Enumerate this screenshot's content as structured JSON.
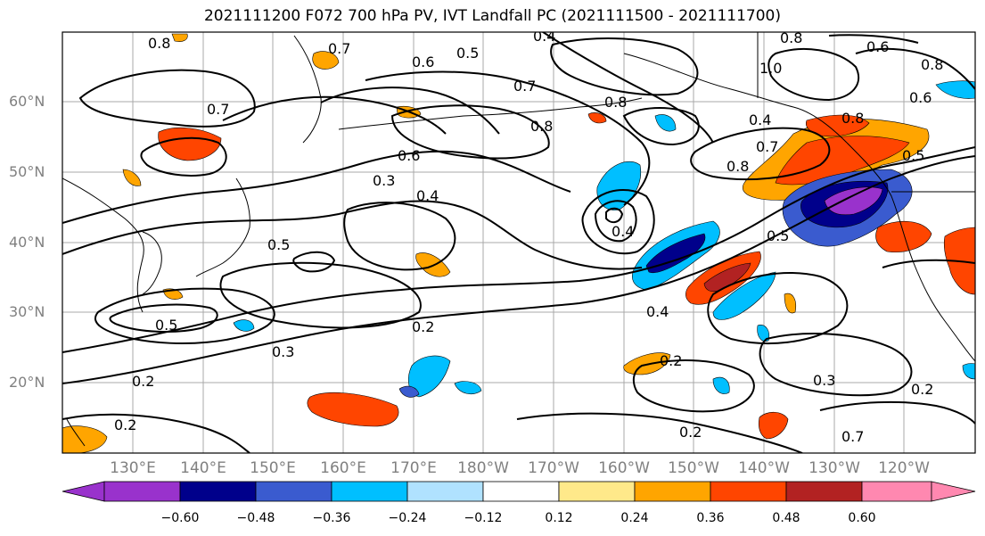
{
  "title": "2021111200 F072 700 hPa PV, IVT Landfall PC (2021111500 - 2021111700)",
  "lat_labels": [
    "60°N",
    "50°N",
    "40°N",
    "30°N",
    "20°N"
  ],
  "lon_labels": [
    "130°E",
    "140°E",
    "150°E",
    "160°E",
    "170°E",
    "180°W",
    "170°W",
    "160°W",
    "150°W",
    "140°W",
    "130°W",
    "120°W"
  ],
  "contour_labels": [
    {
      "text": "0.8"
    },
    {
      "text": "0.7"
    },
    {
      "text": "0.4"
    },
    {
      "text": "0.6"
    },
    {
      "text": "0.5"
    },
    {
      "text": "0.7"
    },
    {
      "text": "0.8"
    },
    {
      "text": "0.8"
    },
    {
      "text": "0.6"
    },
    {
      "text": "0.8"
    },
    {
      "text": "1.0"
    },
    {
      "text": "0.8"
    },
    {
      "text": "0.6"
    },
    {
      "text": "0.7"
    },
    {
      "text": "0.3"
    },
    {
      "text": "0.6"
    },
    {
      "text": "0.4"
    },
    {
      "text": "0.7"
    },
    {
      "text": "0.8"
    },
    {
      "text": "0.4"
    },
    {
      "text": "0.5"
    },
    {
      "text": "0.5"
    },
    {
      "text": "0.5"
    },
    {
      "text": "0.5"
    },
    {
      "text": "0.4"
    },
    {
      "text": "0.4"
    },
    {
      "text": "0.3"
    },
    {
      "text": "0.2"
    },
    {
      "text": "0.2"
    },
    {
      "text": "0.2"
    },
    {
      "text": "0.3"
    },
    {
      "text": "0.2"
    },
    {
      "text": "0.2"
    },
    {
      "text": "0.2"
    },
    {
      "text": "0.7"
    },
    {
      "text": "0.8"
    }
  ],
  "colorbar": {
    "ticks": [
      "−0.60",
      "−0.48",
      "−0.36",
      "−0.24",
      "−0.12",
      "0.12",
      "0.24",
      "0.36",
      "0.48",
      "0.60"
    ],
    "colors": [
      "#9932cc",
      "#00008b",
      "#3a5bcf",
      "#00bfff",
      "#b0e2ff",
      "#ffffff",
      "#ffe98a",
      "#ffa500",
      "#ff4500",
      "#b22222",
      "#ff88b0"
    ]
  },
  "fill_colors": {
    "neg1": "#b0e2ff",
    "neg2": "#00bfff",
    "neg3": "#3a5bcf",
    "neg4": "#00008b",
    "neg5": "#9932cc",
    "pos1": "#ffe98a",
    "pos2": "#ffa500",
    "pos3": "#ff4500",
    "pos4": "#b22222",
    "pos5": "#ff88b0"
  }
}
